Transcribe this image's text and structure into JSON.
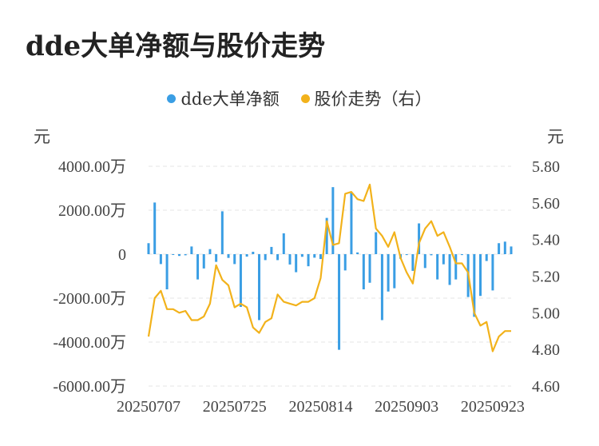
{
  "title": "dde大单净额与股价走势",
  "legend": {
    "dde": "dde大单净额",
    "price": "股价走势（右）"
  },
  "colors": {
    "bar": "#3a9ee4",
    "line": "#f2b21b",
    "grid": "#e6e6e6",
    "tick": "#444444"
  },
  "chart_data": {
    "type": "bar+line",
    "title": "dde大单净额与股价走势",
    "left_unit": "元",
    "right_unit": "元",
    "left_axis": {
      "min": -6000,
      "max": 4000,
      "ticks": [
        4000,
        2000,
        0,
        -2000,
        -4000,
        -6000
      ],
      "tick_labels": [
        "4000.00万",
        "2000.00万",
        "0",
        "-2000.00万",
        "-4000.00万",
        "-6000.00万"
      ]
    },
    "right_axis": {
      "min": 4.6,
      "max": 5.8,
      "ticks": [
        5.8,
        5.6,
        5.4,
        5.2,
        5.0,
        4.8,
        4.6
      ],
      "tick_labels": [
        "5.80",
        "5.60",
        "5.40",
        "5.20",
        "5.00",
        "4.80",
        "4.60"
      ]
    },
    "x_tick_labels": [
      "20250707",
      "20250725",
      "20250814",
      "20250903",
      "20250923"
    ],
    "x_tick_indices": [
      0,
      14,
      28,
      42,
      56
    ],
    "n_points": 60,
    "series": [
      {
        "name": "dde大单净额",
        "type": "bar",
        "values": [
          500,
          2350,
          -450,
          -1600,
          -30,
          -80,
          -50,
          350,
          -1150,
          -650,
          230,
          -350,
          1950,
          -170,
          -450,
          -2400,
          -110,
          110,
          -3000,
          -270,
          330,
          -270,
          950,
          -470,
          -820,
          -120,
          -550,
          -160,
          -220,
          1650,
          3050,
          -4350,
          -740,
          2800,
          80,
          -1600,
          -1300,
          1000,
          -3000,
          -1700,
          -1550,
          -210,
          -40,
          -760,
          1400,
          -630,
          -50,
          -1150,
          -460,
          -1400,
          -1150,
          -40,
          -1950,
          -2850,
          -1900,
          -310,
          -1650,
          500,
          570,
          350
        ]
      },
      {
        "name": "股价走势（右）",
        "type": "line",
        "values": [
          4.87,
          5.08,
          5.12,
          5.02,
          5.02,
          5.0,
          5.01,
          4.96,
          4.96,
          4.98,
          5.05,
          5.26,
          5.18,
          5.15,
          5.03,
          5.05,
          5.03,
          4.92,
          4.89,
          4.95,
          4.97,
          5.1,
          5.06,
          5.05,
          5.04,
          5.06,
          5.06,
          5.08,
          5.19,
          5.5,
          5.37,
          5.38,
          5.65,
          5.66,
          5.62,
          5.61,
          5.7,
          5.46,
          5.42,
          5.36,
          5.44,
          5.3,
          5.22,
          5.16,
          5.38,
          5.46,
          5.5,
          5.42,
          5.44,
          5.36,
          5.27,
          5.27,
          5.22,
          5.0,
          4.93,
          4.95,
          4.79,
          4.87,
          4.9,
          4.9
        ]
      }
    ],
    "grid": "horizontal-dashed",
    "legend_position": "top-center"
  }
}
